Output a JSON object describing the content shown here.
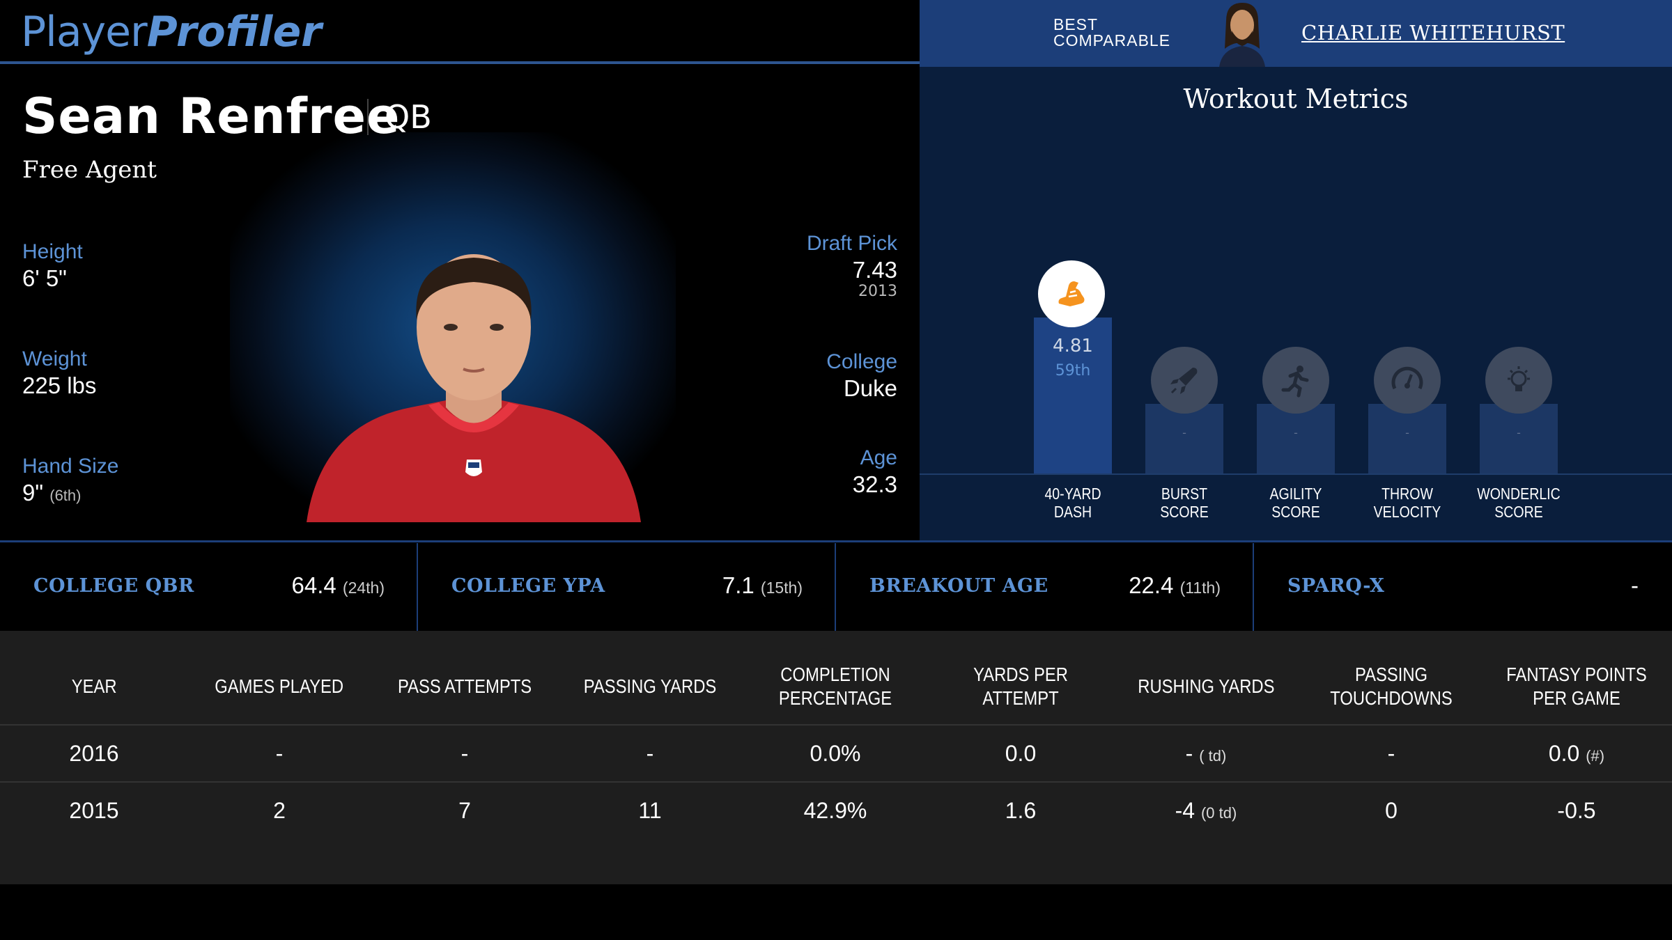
{
  "header": {
    "logo_part1": "Player",
    "logo_part2": "Profiler",
    "best_comparable_line1": "BEST",
    "best_comparable_line2": "COMPARABLE",
    "comparable_name": "CHARLIE WHITEHURST"
  },
  "player": {
    "name": "Sean Renfree",
    "position": "QB",
    "team": "Free Agent",
    "height_label": "Height",
    "height": "6' 5\"",
    "weight_label": "Weight",
    "weight": "225 lbs",
    "hand_label": "Hand Size",
    "hand": "9\"",
    "hand_rank": "(6th)",
    "draft_label": "Draft Pick",
    "draft": "7.43",
    "draft_year": "2013",
    "college_label": "College",
    "college": "Duke",
    "age_label": "Age",
    "age": "32.3"
  },
  "workout": {
    "title": "Workout Metrics",
    "metrics": [
      {
        "label1": "40-YARD",
        "label2": "DASH",
        "value": "4.81",
        "rank": "59th",
        "icon": "running-shoe-icon"
      },
      {
        "label1": "BURST",
        "label2": "SCORE",
        "value": "-",
        "icon": "rocket-icon"
      },
      {
        "label1": "AGILITY",
        "label2": "SCORE",
        "value": "-",
        "icon": "runner-icon"
      },
      {
        "label1": "THROW",
        "label2": "VELOCITY",
        "value": "-",
        "icon": "speedometer-icon"
      },
      {
        "label1": "WONDERLIC",
        "label2": "SCORE",
        "value": "-",
        "icon": "lightbulb-icon"
      }
    ]
  },
  "strip": [
    {
      "label": "COLLEGE QBR",
      "value": "64.4",
      "rank": "(24th)"
    },
    {
      "label": "COLLEGE YPA",
      "value": "7.1",
      "rank": "(15th)"
    },
    {
      "label": "BREAKOUT AGE",
      "value": "22.4",
      "rank": "(11th)"
    },
    {
      "label": "SPARQ-X",
      "value": "-",
      "rank": ""
    }
  ],
  "table": {
    "headers": [
      "YEAR",
      "GAMES PLAYED",
      "PASS ATTEMPTS",
      "PASSING YARDS",
      "COMPLETION PERCENTAGE",
      "YARDS PER ATTEMPT",
      "RUSHING YARDS",
      "PASSING TOUCHDOWNS",
      "FANTASY POINTS PER GAME"
    ],
    "rows": [
      {
        "year": "2016",
        "games": "-",
        "attempts": "-",
        "yards": "-",
        "comp": "0.0%",
        "ypa": "0.0",
        "rush": "-",
        "rush_td": "( td)",
        "ptd": "-",
        "fp": "0.0",
        "fp_rank": "(#)"
      },
      {
        "year": "2015",
        "games": "2",
        "attempts": "7",
        "yards": "11",
        "comp": "42.9%",
        "ypa": "1.6",
        "rush": "-4",
        "rush_td": "(0 td)",
        "ptd": "0",
        "fp": "-0.5",
        "fp_rank": ""
      }
    ]
  },
  "colors": {
    "accent": "#5d93d6",
    "header_blue": "#1c3e79",
    "workout_bg": "#0a1e3c",
    "orange": "#f5931e"
  }
}
